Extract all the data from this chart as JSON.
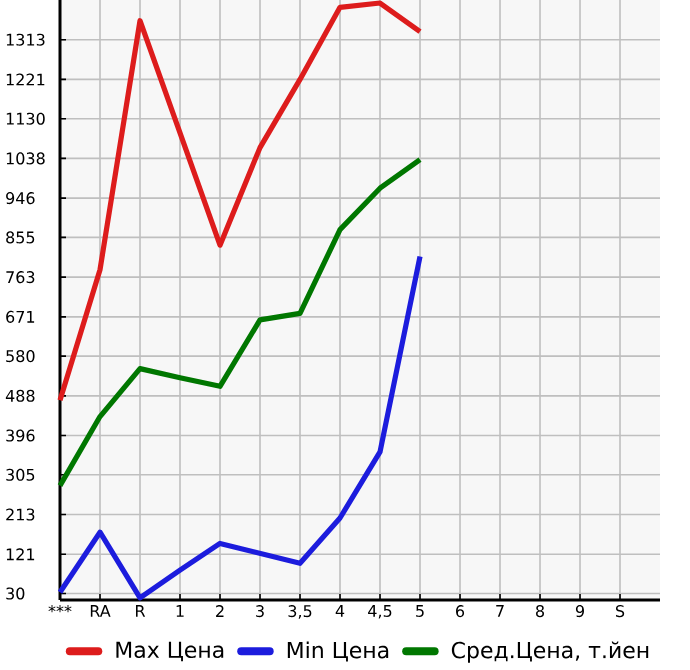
{
  "chart_data": {
    "type": "line",
    "categories": [
      "***",
      "RA",
      "R",
      "1",
      "2",
      "3",
      "3,5",
      "4",
      "4,5",
      "5",
      "6",
      "7",
      "8",
      "9",
      "S"
    ],
    "series": [
      {
        "name": "Max Цена",
        "color": "#dd1c1c",
        "values": [
          478,
          780,
          1357,
          1097,
          837,
          1063,
          1221,
          1388,
          1398,
          1332,
          null,
          null,
          null,
          null,
          null
        ]
      },
      {
        "name": "Min Цена",
        "color": "#1c1cdd",
        "values": [
          33,
          172,
          20,
          84,
          146,
          123,
          100,
          205,
          358,
          811,
          null,
          null,
          null,
          null,
          null
        ]
      },
      {
        "name": "Сред.Цена, т.йен",
        "color": "#007700",
        "values": [
          280,
          440,
          551,
          530,
          510,
          664,
          679,
          873,
          969,
          1035,
          null,
          null,
          null,
          null,
          null
        ]
      }
    ],
    "ylim": [
      15,
      1405
    ],
    "yticks": [
      30,
      121,
      213,
      305,
      396,
      488,
      580,
      671,
      763,
      855,
      946,
      1038,
      1130,
      1221,
      1313
    ],
    "grid": true,
    "legend": "bottom",
    "marker": "none",
    "line_style": "solid"
  }
}
